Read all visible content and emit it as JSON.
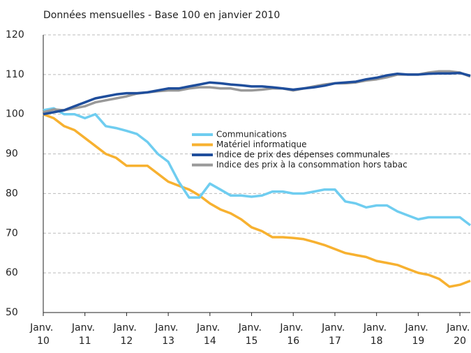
{
  "chart_data": {
    "type": "line",
    "title": "Données mensuelles - Base 100 en janvier 2010",
    "categories": [
      "Janv. 10",
      null,
      null,
      null,
      "Janv. 11",
      null,
      null,
      null,
      "Janv. 12",
      null,
      null,
      null,
      "Janv. 13",
      null,
      null,
      null,
      "Janv. 14",
      null,
      null,
      null,
      "Janv. 15",
      null,
      null,
      null,
      "Janv. 16",
      null,
      null,
      null,
      "Janv. 17",
      null,
      null,
      null,
      "Janv. 18",
      null,
      null,
      null,
      "Janv. 19",
      null,
      null,
      null,
      "Janv. 20",
      null
    ],
    "series": [
      {
        "name": "Communications",
        "color": "#6fcdf0",
        "values": [
          101,
          101.5,
          100,
          100,
          99,
          100,
          97,
          96.5,
          95.8,
          95,
          93,
          90,
          88,
          83,
          79,
          79,
          82.5,
          81,
          79.5,
          79.5,
          79.2,
          79.5,
          80.5,
          80.5,
          80,
          80,
          80.5,
          81,
          81,
          78,
          77.5,
          76.5,
          77,
          77,
          75.5,
          74.5,
          73.5,
          74,
          74,
          74,
          74,
          72
        ]
      },
      {
        "name": "Matériel informatique",
        "color": "#f7b130",
        "values": [
          100,
          99,
          97,
          96,
          94,
          92,
          90,
          89,
          87,
          87,
          87,
          85,
          83,
          82,
          81,
          79.5,
          77.5,
          76,
          75,
          73.5,
          71.5,
          70.5,
          69,
          69,
          68.8,
          68.5,
          67.8,
          67,
          66,
          65,
          64.5,
          64,
          63,
          62.5,
          62,
          61,
          60,
          59.5,
          58.5,
          56.5,
          57,
          58
        ]
      },
      {
        "name": "Indice de prix des dépenses communales",
        "color": "#1f4e9c",
        "values": [
          100,
          100.5,
          101,
          102,
          103,
          104,
          104.5,
          105,
          105.3,
          105.3,
          105.5,
          106,
          106.5,
          106.5,
          107,
          107.5,
          108,
          107.8,
          107.5,
          107.3,
          107,
          107,
          106.8,
          106.5,
          106.2,
          106.5,
          106.8,
          107.2,
          107.8,
          108,
          108.2,
          108.8,
          109.2,
          109.8,
          110.2,
          110,
          110,
          110.2,
          110.3,
          110.3,
          110.4,
          109.7
        ]
      },
      {
        "name": "Indice des prix à la consommation hors tabac",
        "color": "#999999",
        "values": [
          100.5,
          101.2,
          101,
          101.5,
          102,
          103,
          103.5,
          104,
          104.5,
          105.2,
          105.5,
          105.8,
          106,
          106,
          106.5,
          106.8,
          106.8,
          106.5,
          106.5,
          106,
          106,
          106.2,
          106.5,
          106.5,
          106,
          106.5,
          107,
          107.5,
          107.8,
          107.8,
          108,
          108.5,
          108.8,
          109.3,
          110,
          110,
          110,
          110.5,
          110.8,
          110.8,
          110.5,
          109.5
        ]
      }
    ],
    "ylim": [
      50,
      120
    ],
    "yticks": [
      50,
      60,
      70,
      80,
      90,
      100,
      110,
      120
    ],
    "grid": true,
    "legend": "center"
  }
}
